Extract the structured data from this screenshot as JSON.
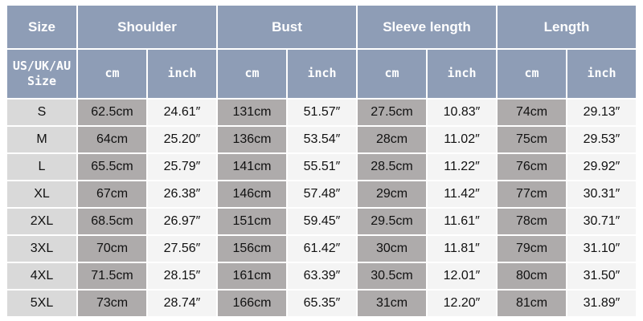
{
  "table": {
    "header": [
      "Size",
      "Shoulder",
      "Bust",
      "Sleeve length",
      "Length"
    ],
    "subheader": [
      "US/UK/AU Size",
      "cm",
      "inch",
      "cm",
      "inch",
      "cm",
      "inch",
      "cm",
      "inch"
    ],
    "rows": [
      [
        "S",
        "62.5cm",
        "24.61″",
        "131cm",
        "51.57″",
        "27.5cm",
        "10.83″",
        "74cm",
        "29.13″"
      ],
      [
        "M",
        "64cm",
        "25.20″",
        "136cm",
        "53.54″",
        "28cm",
        "11.02″",
        "75cm",
        "29.53″"
      ],
      [
        "L",
        "65.5cm",
        "25.79″",
        "141cm",
        "55.51″",
        "28.5cm",
        "11.22″",
        "76cm",
        "29.92″"
      ],
      [
        "XL",
        "67cm",
        "26.38″",
        "146cm",
        "57.48″",
        "29cm",
        "11.42″",
        "77cm",
        "30.31″"
      ],
      [
        "2XL",
        "68.5cm",
        "26.97″",
        "151cm",
        "59.45″",
        "29.5cm",
        "11.61″",
        "78cm",
        "30.71″"
      ],
      [
        "3XL",
        "70cm",
        "27.56″",
        "156cm",
        "61.42″",
        "30cm",
        "11.81″",
        "79cm",
        "31.10″"
      ],
      [
        "4XL",
        "71.5cm",
        "28.15″",
        "161cm",
        "63.39″",
        "30.5cm",
        "12.01″",
        "80cm",
        "31.50″"
      ],
      [
        "5XL",
        "73cm",
        "28.74″",
        "166cm",
        "65.35″",
        "31cm",
        "12.20″",
        "81cm",
        "31.89″"
      ]
    ]
  }
}
